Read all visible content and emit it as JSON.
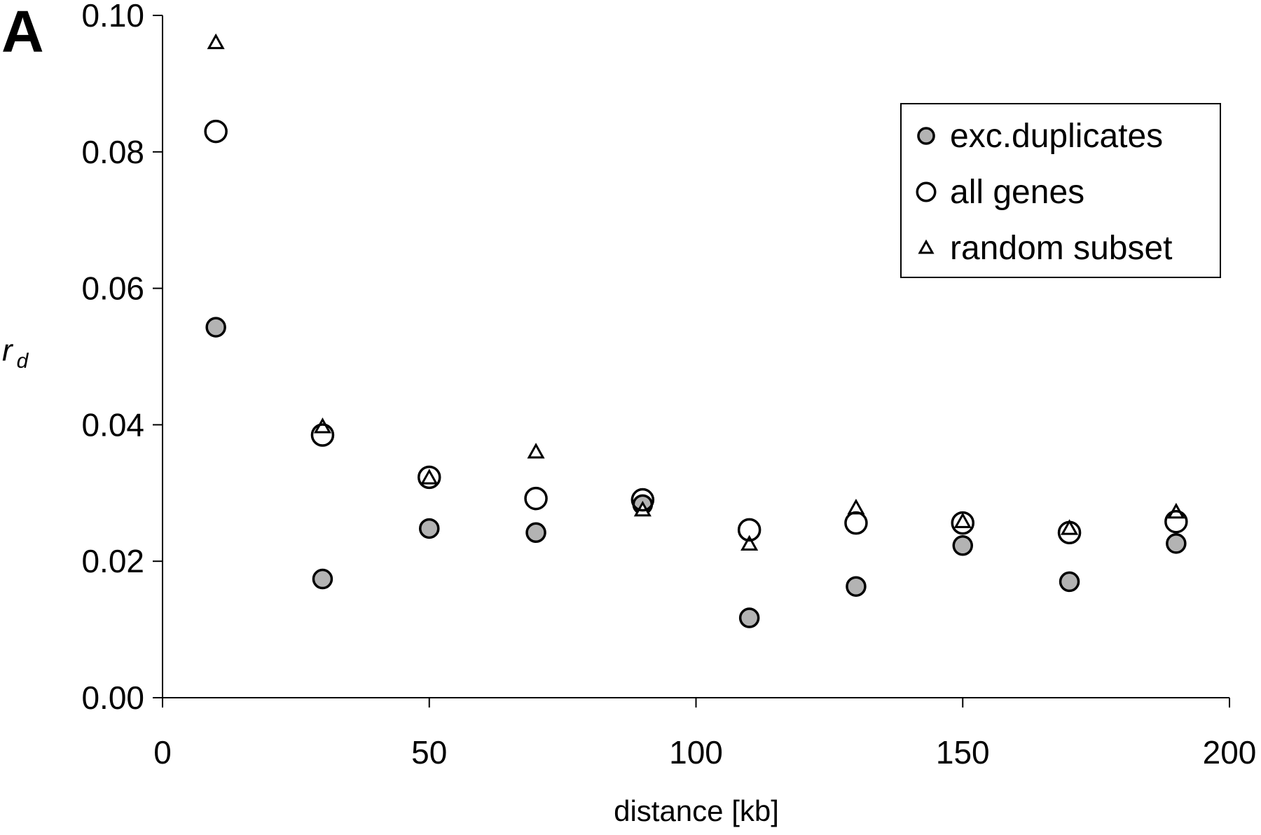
{
  "panel_label": "A",
  "chart_data": {
    "type": "scatter",
    "xlabel": "distance [kb]",
    "ylabel": "r",
    "ylabel_subscript": "d",
    "xlim": [
      0,
      200
    ],
    "ylim": [
      0,
      0.1
    ],
    "x_ticks": [
      0,
      50,
      100,
      150,
      200
    ],
    "x_tick_labels": [
      "0",
      "50",
      "100",
      "150",
      "200"
    ],
    "y_ticks": [
      0,
      0.02,
      0.04,
      0.06,
      0.08,
      0.1
    ],
    "y_tick_labels": [
      "0.00",
      "0.02",
      "0.04",
      "0.06",
      "0.08",
      "0.10"
    ],
    "grid": false,
    "legend_position": "top-right",
    "x": [
      10,
      30,
      50,
      70,
      90,
      110,
      130,
      150,
      170,
      190
    ],
    "series": [
      {
        "name": "exc.duplicates",
        "marker": "filled-circle",
        "color": "#b3b3b3",
        "values": [
          0.0543,
          0.0174,
          0.0248,
          0.0242,
          0.0283,
          0.0117,
          0.0163,
          0.0223,
          0.017,
          0.0226
        ]
      },
      {
        "name": "all genes",
        "marker": "open-circle",
        "color": "#ffffff",
        "values": [
          0.083,
          0.0385,
          0.0323,
          0.0292,
          0.029,
          0.0246,
          0.0256,
          0.0256,
          0.0242,
          0.0258
        ]
      },
      {
        "name": "random subset",
        "marker": "open-triangle",
        "color": "#ffffff",
        "values": [
          0.096,
          0.0397,
          0.0322,
          0.036,
          0.0275,
          0.0225,
          0.0278,
          0.0258,
          0.0248,
          0.0272
        ]
      }
    ]
  }
}
